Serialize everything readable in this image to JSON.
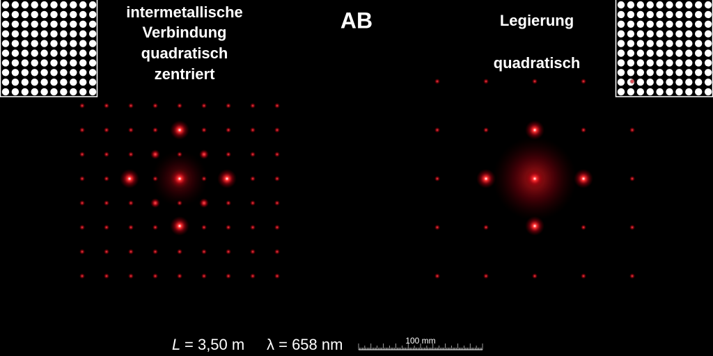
{
  "title": "AB",
  "left_label": [
    "intermetallische",
    "Verbindung",
    "quadratisch",
    "zentriert"
  ],
  "right_label": [
    "Legierung",
    "quadratisch"
  ],
  "caption": {
    "distance_symbol": "L",
    "distance_text": "= 3,50 m",
    "wavelength": "λ = 658 nm"
  },
  "scale_bar": "100 mm"
}
